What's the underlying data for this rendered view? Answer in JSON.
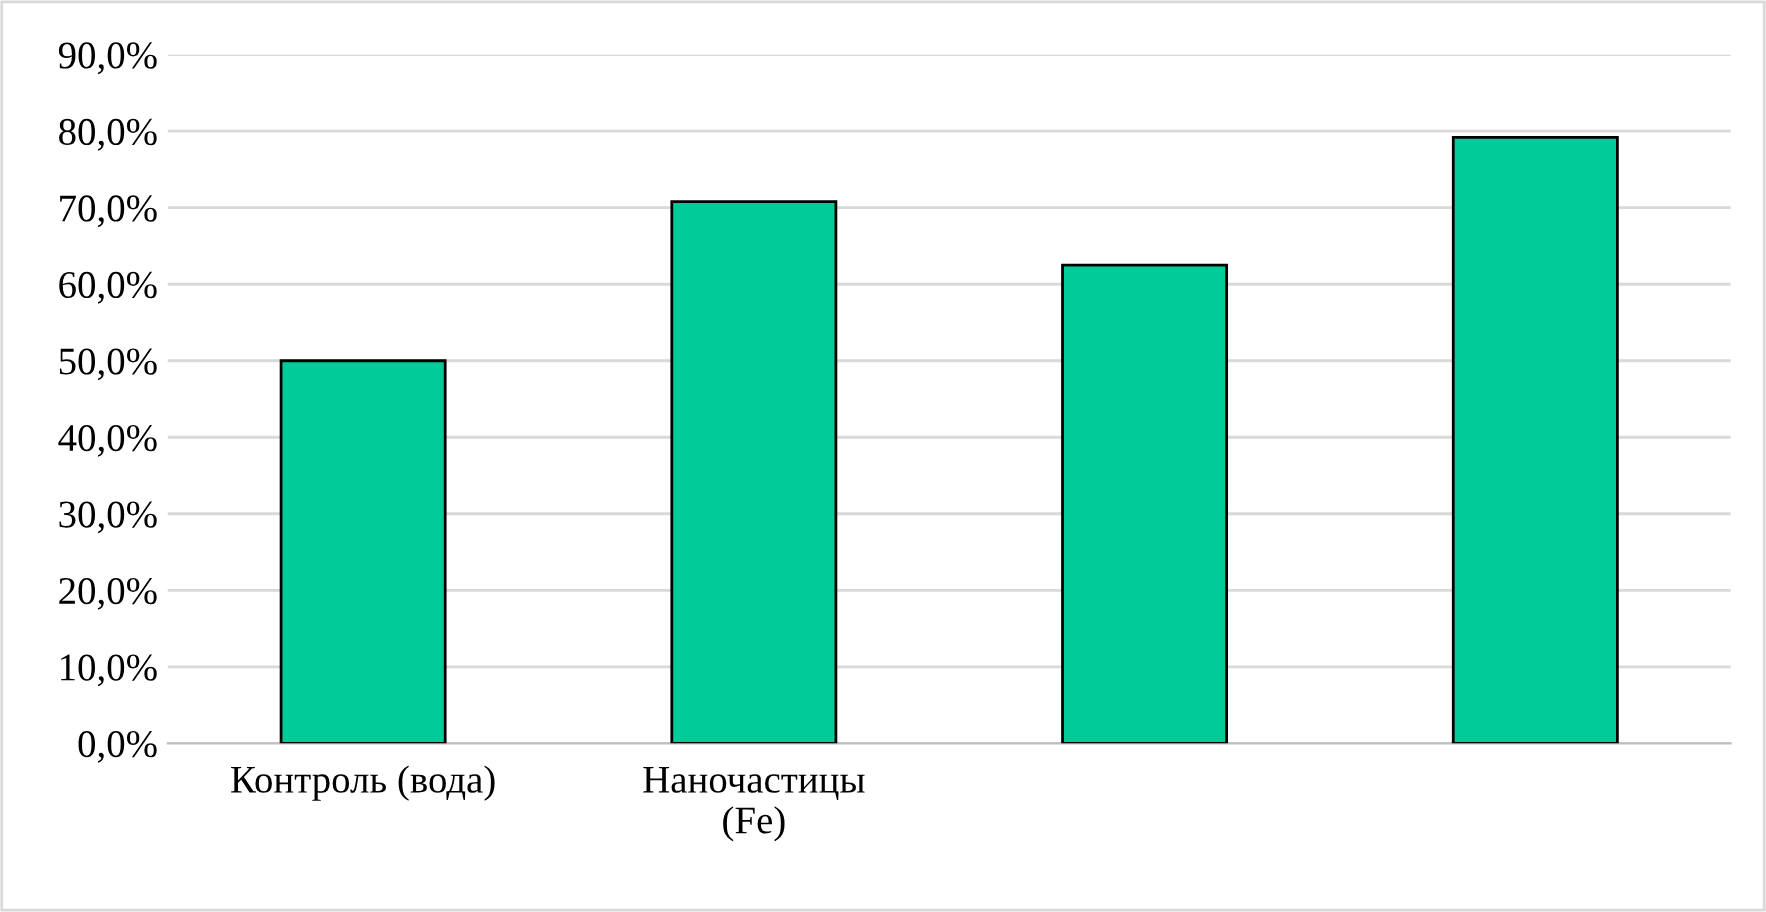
{
  "chart_data": {
    "type": "bar",
    "categories": [
      "Контроль (вода)",
      "Наночастицы\n(Fe)",
      null,
      null
    ],
    "values": [
      50.0,
      70.8,
      62.5,
      79.2
    ],
    "color": "#00cc99",
    "ylim": [
      0,
      90
    ],
    "yticks": [
      {
        "value": 0,
        "label": "0,0%"
      },
      {
        "value": 10,
        "label": "10,0%"
      },
      {
        "value": 20,
        "label": "20,0%"
      },
      {
        "value": 30,
        "label": "30,0%"
      },
      {
        "value": 40,
        "label": "40,0%"
      },
      {
        "value": 50,
        "label": "50,0%"
      },
      {
        "value": 60,
        "label": "60,0%"
      },
      {
        "value": 70,
        "label": "70,0%"
      },
      {
        "value": 80,
        "label": "80,0%"
      },
      {
        "value": 90,
        "label": "90,0%"
      }
    ],
    "grid": "y",
    "legend": false
  }
}
